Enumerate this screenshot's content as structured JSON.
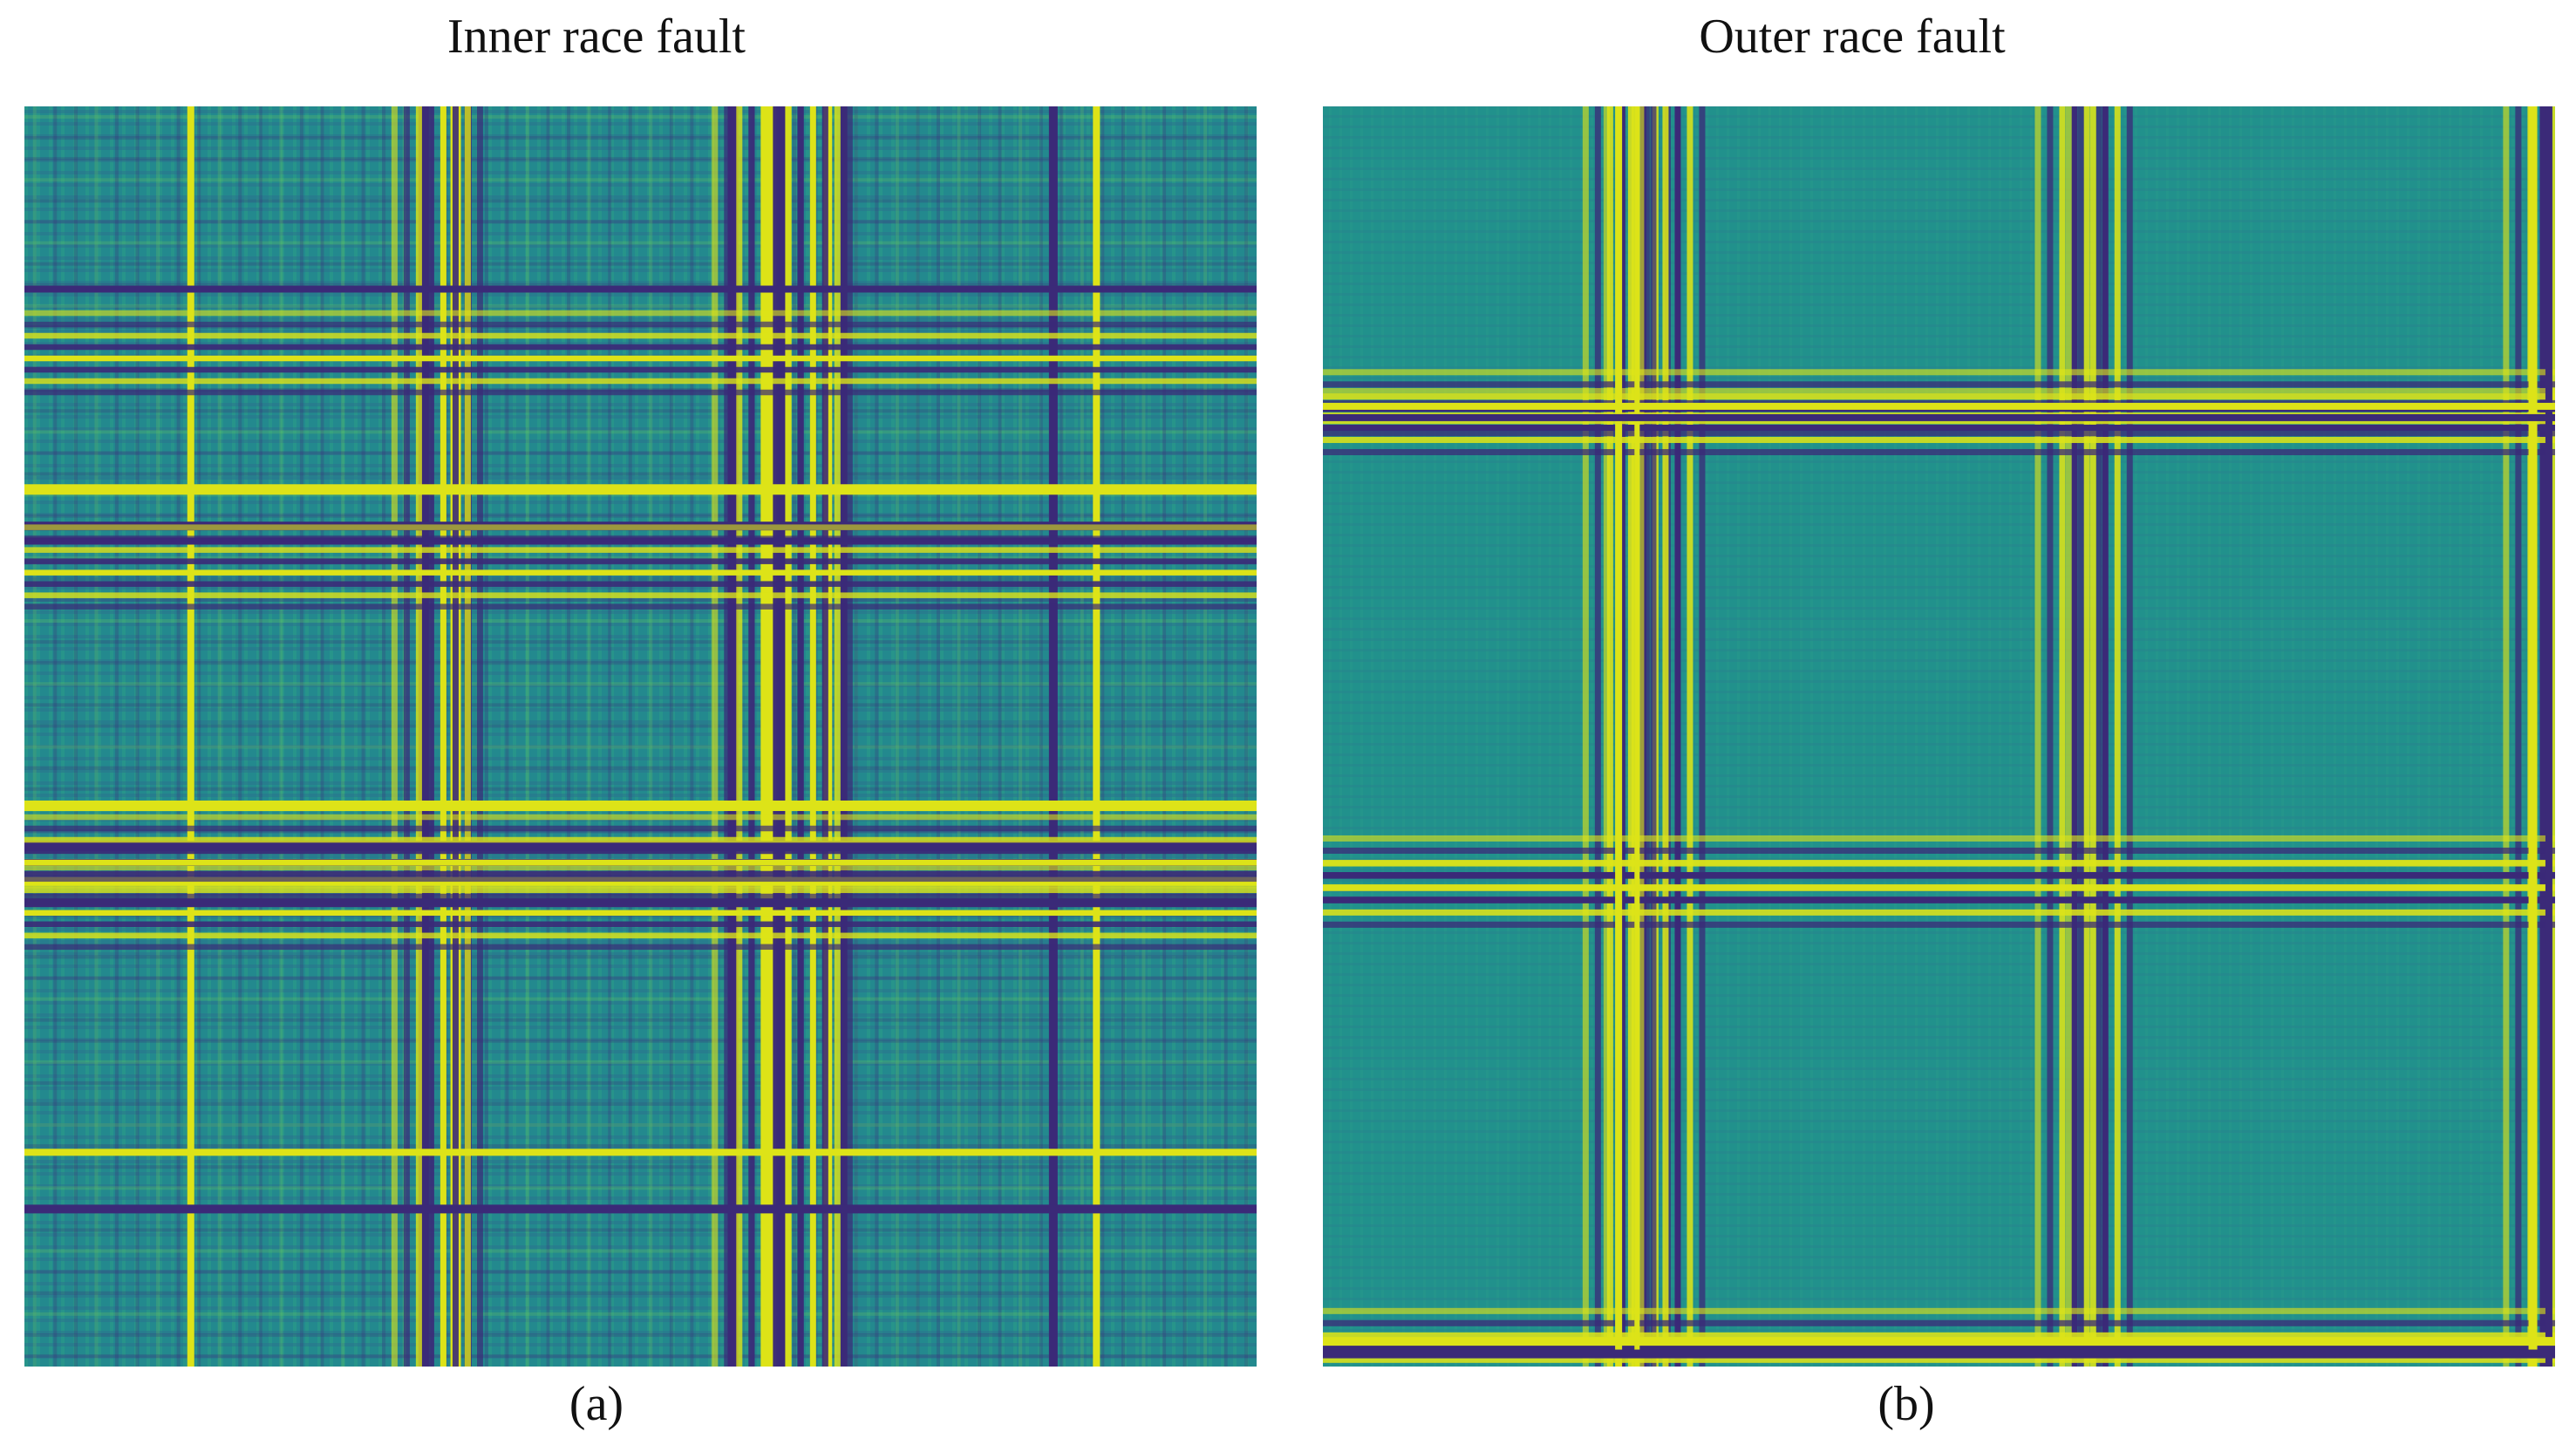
{
  "figure": {
    "panels": [
      {
        "title": "Inner race fault",
        "caption": "(a)"
      },
      {
        "title": "Outer race fault",
        "caption": "(b)"
      }
    ]
  }
}
